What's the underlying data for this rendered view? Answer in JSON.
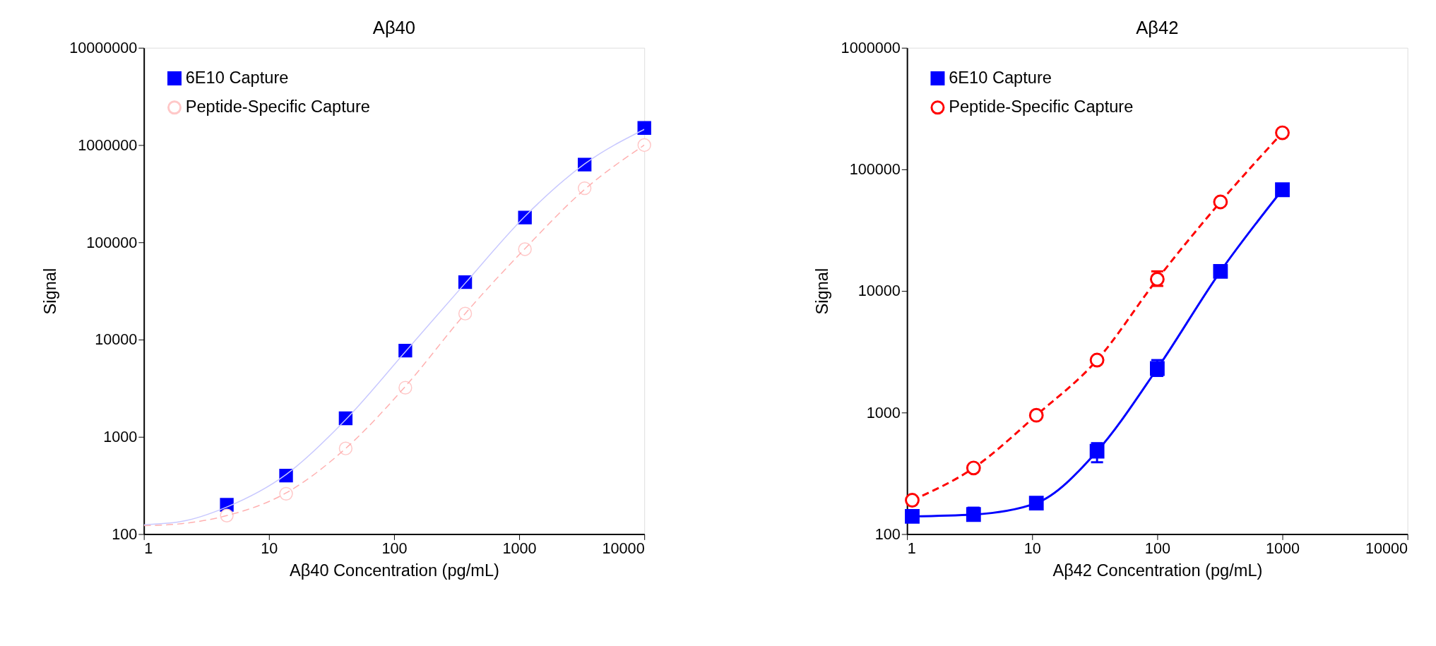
{
  "chart_data": [
    {
      "type": "scatter",
      "title": "Aβ40",
      "xlabel": "Aβ40 Concentration (pg/mL)",
      "ylabel": "Signal",
      "log": "xy",
      "grid": false,
      "legend": "top left",
      "xlim": [
        1,
        10000
      ],
      "xticks": [
        1,
        10,
        100,
        1000,
        10000
      ],
      "ylim": [
        100,
        10000000
      ],
      "yticks": [
        100,
        1000,
        10000,
        100000,
        1000000,
        10000000
      ],
      "series": [
        {
          "name": "6E10 Capture",
          "marker": "square",
          "color": "#0000ff",
          "x": [
            4.6,
            13.7,
            41,
            123,
            370,
            1111,
            3333,
            10000
          ],
          "values": [
            200,
            400,
            1550,
            7700,
            39000,
            180000,
            630000,
            1500000
          ]
        },
        {
          "name": "Peptide-Specific Capture",
          "marker": "circle",
          "color": "#ffc8c8",
          "x": [
            4.6,
            13.7,
            41,
            123,
            370,
            1111,
            3333,
            10000
          ],
          "values": [
            155,
            260,
            760,
            3200,
            18500,
            85000,
            360000,
            1000000
          ]
        },
        {
          "type": "line",
          "marker": "none",
          "line_style": "solid",
          "color": "#c8c8ff",
          "x": [
            1,
            2,
            4.6,
            13.7,
            41,
            123,
            370,
            1111,
            3333,
            10000
          ],
          "values": [
            125,
            135,
            190,
            410,
            1500,
            7500,
            38000,
            185000,
            640000,
            1450000
          ]
        },
        {
          "type": "line",
          "marker": "none",
          "line_style": "dashed",
          "color": "#ffb0b0",
          "x": [
            1,
            2,
            4.6,
            13.7,
            41,
            123,
            370,
            1111,
            3333,
            10000
          ],
          "values": [
            122,
            128,
            155,
            265,
            760,
            3300,
            18500,
            86000,
            350000,
            1000000
          ]
        }
      ]
    },
    {
      "type": "line",
      "title": "Aβ42",
      "xlabel": "Aβ42 Concentration (pg/mL)",
      "ylabel": "Signal",
      "log": "xy",
      "grid": false,
      "legend": "top left",
      "xlim": [
        1,
        10000
      ],
      "xticks": [
        1,
        10,
        100,
        1000,
        10000
      ],
      "ylim": [
        100,
        1000000
      ],
      "yticks": [
        100,
        1000,
        10000,
        100000,
        1000000
      ],
      "series": [
        {
          "name": "6E10 Capture",
          "marker": "square",
          "line_style": "solid",
          "color": "#0000ff",
          "x": [
            1.1,
            3.4,
            10.8,
            33,
            100,
            320,
            1000
          ],
          "values": [
            140,
            145,
            180,
            480,
            2300,
            14500,
            68000
          ],
          "errors": [
            null,
            [
              130,
              165
            ],
            null,
            [
              390,
              560
            ],
            [
              2000,
              2700
            ],
            null,
            null
          ]
        },
        {
          "name": "Peptide-Specific Capture",
          "marker": "circle",
          "line_style": "dashed",
          "color": "#ff0000",
          "x": [
            1.1,
            3.4,
            10.8,
            33,
            100,
            320,
            1000
          ],
          "values": [
            190,
            350,
            950,
            2700,
            12500,
            54000,
            200000
          ],
          "errors": [
            null,
            null,
            null,
            null,
            [
              11000,
              14500
            ],
            null,
            null
          ]
        }
      ]
    }
  ]
}
